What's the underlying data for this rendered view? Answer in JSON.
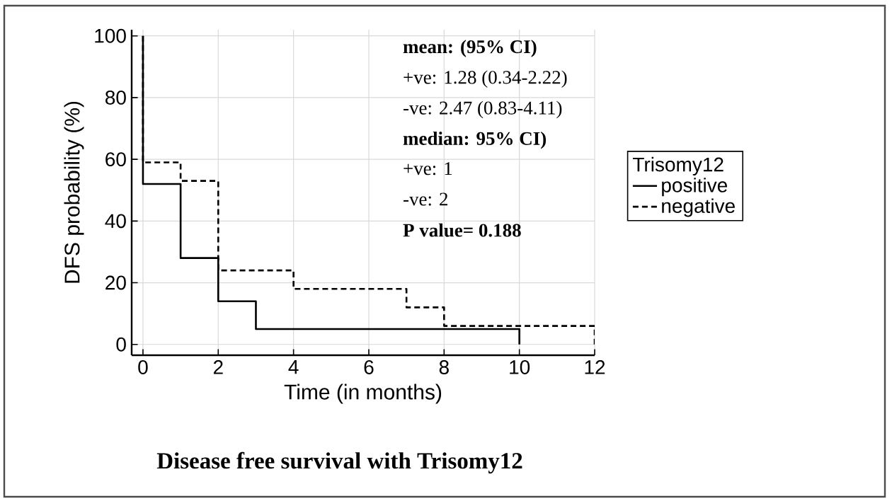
{
  "chart_data": {
    "type": "step",
    "title": "Disease free survival with Trisomy12",
    "xlabel": "Time (in months)",
    "ylabel": "DFS  probability (%)",
    "legend_title": "Trisomy12",
    "xlim": [
      -0.3,
      12
    ],
    "ylim": [
      -3.5,
      102
    ],
    "xticks": [
      0,
      2,
      4,
      6,
      8,
      10,
      12
    ],
    "yticks": [
      0,
      20,
      40,
      60,
      80,
      100
    ],
    "grid": true,
    "legend": "right",
    "series": [
      {
        "name": "positive",
        "color": "#000000",
        "line_style": "solid",
        "x": [
          0,
          0,
          1,
          2,
          3,
          10,
          10
        ],
        "values": [
          100,
          52,
          28,
          14,
          5,
          0,
          0
        ]
      },
      {
        "name": "negative",
        "color": "#000000",
        "line_style": "dashed",
        "x": [
          0,
          0,
          1,
          2,
          4,
          7,
          8,
          12,
          12
        ],
        "values": [
          100,
          59,
          53,
          24,
          18,
          12,
          6,
          0,
          0
        ]
      }
    ],
    "annotations": [
      "**mean: (95% CI)**",
      "+ve: 1.28 (0.34-2.22)",
      "-ve: 2.47 (0.83-4.11)",
      "**median: 95% CI)**",
      "+ve: 1",
      "-ve: 2",
      "**P value= 0.188**"
    ]
  }
}
